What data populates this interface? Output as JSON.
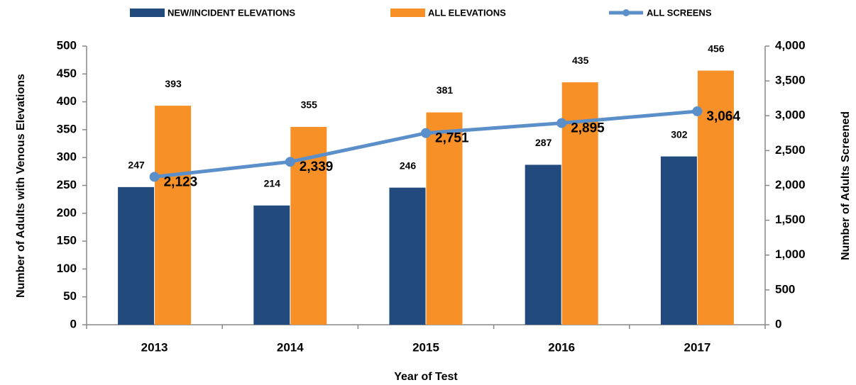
{
  "chart_data": {
    "type": "bar",
    "categories": [
      "2013",
      "2014",
      "2015",
      "2016",
      "2017"
    ],
    "series": [
      {
        "name": "NEW/INCIDENT ELEVATIONS",
        "type": "bar",
        "color": "#234a7c",
        "values": [
          247,
          214,
          246,
          287,
          302
        ]
      },
      {
        "name": "ALL ELEVATIONS",
        "type": "bar",
        "color": "#f79027",
        "values": [
          393,
          355,
          381,
          435,
          456
        ]
      },
      {
        "name": "ALL SCREENS",
        "type": "line",
        "axis": "y2",
        "color": "#5b8fc9",
        "values": [
          2123,
          2339,
          2751,
          2895,
          3064
        ],
        "value_labels": [
          "2,123",
          "2,339",
          "2,751",
          "2,895",
          "3,064"
        ]
      }
    ],
    "ylabel": "Number of Adults with Venous Elevations",
    "y2label": "Number of Adults Screened",
    "xlabel": "Year of Test",
    "ylim": [
      0,
      500
    ],
    "yticks": [
      0,
      50,
      100,
      150,
      200,
      250,
      300,
      350,
      400,
      450,
      500
    ],
    "y2lim": [
      0,
      4000
    ],
    "y2ticks": [
      0,
      500,
      {
        "value": 1000,
        "label": "1,000"
      },
      {
        "value": 1500,
        "label": "1,500"
      },
      {
        "value": 2000,
        "label": "2,000"
      },
      {
        "value": 2500,
        "label": "2,500"
      },
      {
        "value": 3000,
        "label": "3,000"
      },
      {
        "value": 3500,
        "label": "3,500"
      },
      {
        "value": 4000,
        "label": "4,000"
      }
    ],
    "grid": false,
    "legend": "top"
  }
}
